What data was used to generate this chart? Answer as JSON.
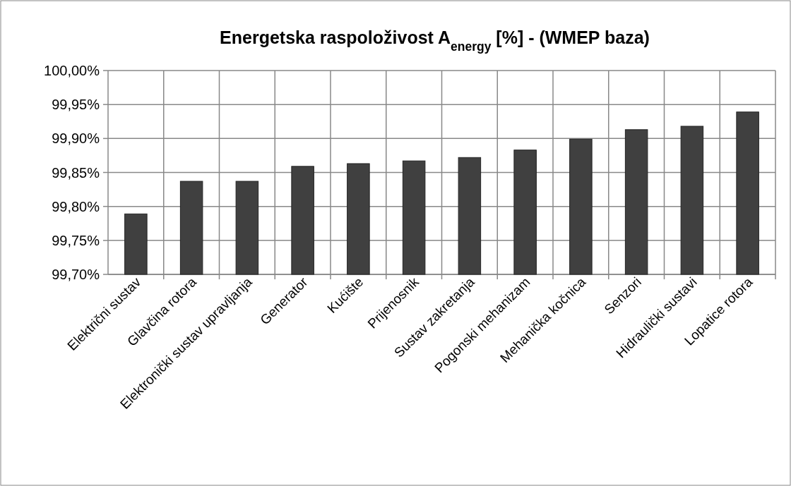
{
  "chart_data": {
    "type": "bar",
    "title": "Energetska raspoloživost  A$_{energy}$ [%] - (WMEP baza)",
    "categories": [
      "Električni sustav",
      "Glavčina rotora",
      "Elektronički sustav upravljanja",
      "Generator",
      "Kućište",
      "Prijenosnik",
      "Sustav zakretanja",
      "Pogonski mehanizam",
      "Mehanička kočnica",
      "Senzori",
      "Hidraulički sustavi",
      "Lopatice rotora"
    ],
    "values": [
      99.789,
      99.837,
      99.837,
      99.859,
      99.863,
      99.867,
      99.872,
      99.883,
      99.899,
      99.913,
      99.918,
      99.939
    ],
    "color": "#404040",
    "ylim": [
      99.7,
      100
    ],
    "yticks": [
      {
        "value": 99.7,
        "label": "99,70%"
      },
      {
        "value": 99.75,
        "label": "99,75%"
      },
      {
        "value": 99.8,
        "label": "99,80%"
      },
      {
        "value": 99.85,
        "label": "99,85%"
      },
      {
        "value": 99.9,
        "label": "99,90%"
      },
      {
        "value": 99.95,
        "label": "99,95%"
      },
      {
        "value": 100,
        "label": "100,00%"
      }
    ],
    "grid": true
  }
}
